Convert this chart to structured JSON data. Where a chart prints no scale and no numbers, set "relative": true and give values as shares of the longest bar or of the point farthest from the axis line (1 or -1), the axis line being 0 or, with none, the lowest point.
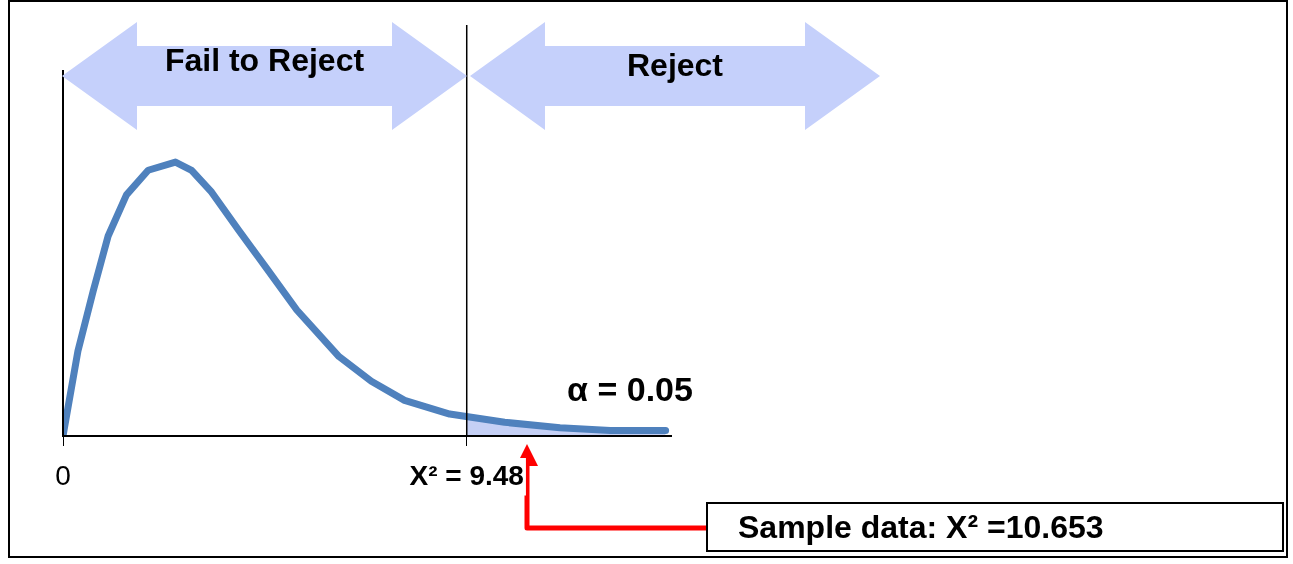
{
  "chart_data": {
    "type": "line",
    "relative": true,
    "x": [
      0,
      0.35,
      0.71,
      1.06,
      1.49,
      2.0,
      2.64,
      3.02,
      3.49,
      4.13,
      4.79,
      5.49,
      6.48,
      7.24,
      8.02,
      9.08,
      10.37,
      11.67,
      12.85,
      14.15
    ],
    "series": [
      {
        "color": "#4f81bd",
        "values": [
          0,
          0.31,
          0.53,
          0.73,
          0.88,
          0.97,
          1,
          0.97,
          0.89,
          0.75,
          0.61,
          0.46,
          0.29,
          0.2,
          0.13,
          0.08,
          0.05,
          0.03,
          0.02,
          0.02
        ]
      },
      {
        "type": "area",
        "color": "#c5d0f5",
        "x": [
          9.48,
          10.37,
          11.67,
          12.85,
          14.15
        ],
        "values": [
          0.07,
          0.05,
          0.03,
          0.02,
          0.02
        ]
      }
    ],
    "xlim": [
      0,
      14.3
    ],
    "xticks": [
      0,
      {
        "value": 9.48,
        "label": "X² = 9.48"
      }
    ],
    "ref_lines": [
      {
        "axis": "x",
        "value": 9.48,
        "color": "#000000"
      }
    ],
    "annotations": [
      "Fail to Reject",
      "Reject",
      "α = 0.05",
      "Sample data: X² =10.653"
    ],
    "legend": false,
    "marker": "none",
    "line_style": "solid"
  }
}
